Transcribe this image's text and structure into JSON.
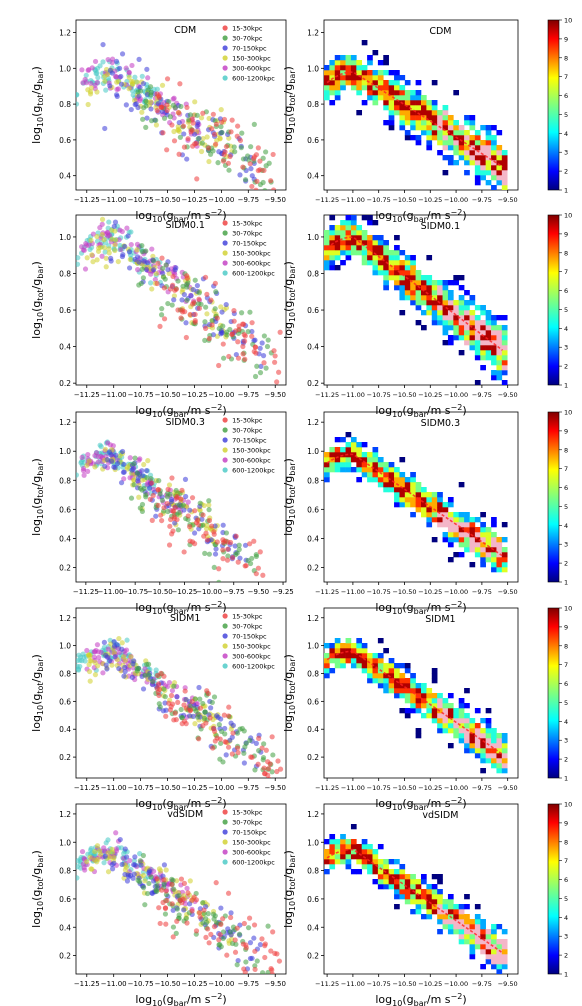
{
  "chart_data": {
    "type": "scatter",
    "legend": [
      "15-30kpc",
      "30-70kpc",
      "70-150kpc",
      "150-300kpc",
      "300-600kpc",
      "600-1200kpc"
    ],
    "series_colors": [
      "#ee3a3a",
      "#3f9e3f",
      "#3b3bd9",
      "#cfcf2a",
      "#c23ac2",
      "#45c8c4"
    ],
    "xlabel_prefix": "log",
    "ylabel_prefix": "log",
    "x_ticks": [
      "-11.25",
      "-11.00",
      "-10.75",
      "-10.50",
      "-10.25",
      "-10.00",
      "-9.75",
      "-9.50"
    ],
    "x_ticks_alt": [
      "-11.25",
      "-11.00",
      "-10.75",
      "-10.50",
      "-10.25",
      "-10.00",
      "-9.75",
      "-9.50",
      "-9.25"
    ],
    "colorbar_ticks": [
      "1",
      "2",
      "3",
      "4",
      "5",
      "6",
      "7",
      "8",
      "9",
      "10"
    ],
    "rows": [
      {
        "model": "CDM",
        "xlim": [
          -11.35,
          -9.4
        ],
        "ylim": [
          0.32,
          1.27
        ],
        "yticks": [
          0.4,
          0.6,
          0.8,
          1.0,
          1.2
        ],
        "xticks": 8,
        "hist_xlim": [
          -11.28,
          -9.4
        ]
      },
      {
        "model": "SIDM0.1",
        "xlim": [
          -11.35,
          -9.4
        ],
        "ylim": [
          0.19,
          1.12
        ],
        "yticks": [
          0.2,
          0.4,
          0.6,
          0.8,
          1.0
        ],
        "xticks": 8,
        "hist_xlim": [
          -11.28,
          -9.4
        ]
      },
      {
        "model": "SIDM0.3",
        "xlim": [
          -11.35,
          -9.22
        ],
        "ylim": [
          0.1,
          1.27
        ],
        "yticks": [
          0.2,
          0.4,
          0.6,
          0.8,
          1.0,
          1.2
        ],
        "xticks": 9,
        "hist_xlim": [
          -11.28,
          -9.4
        ]
      },
      {
        "model": "SIDM1",
        "xlim": [
          -11.35,
          -9.4
        ],
        "ylim": [
          0.05,
          1.27
        ],
        "yticks": [
          0.2,
          0.4,
          0.6,
          0.8,
          1.0,
          1.2
        ],
        "xticks": 8,
        "hist_xlim": [
          -11.28,
          -9.4
        ]
      },
      {
        "model": "vdSIDM",
        "xlim": [
          -11.35,
          -9.4
        ],
        "ylim": [
          0.07,
          1.27
        ],
        "yticks": [
          0.2,
          0.4,
          0.6,
          0.8,
          1.0,
          1.2
        ],
        "xticks": 8,
        "hist_xlim": [
          -11.28,
          -9.4
        ]
      }
    ]
  }
}
